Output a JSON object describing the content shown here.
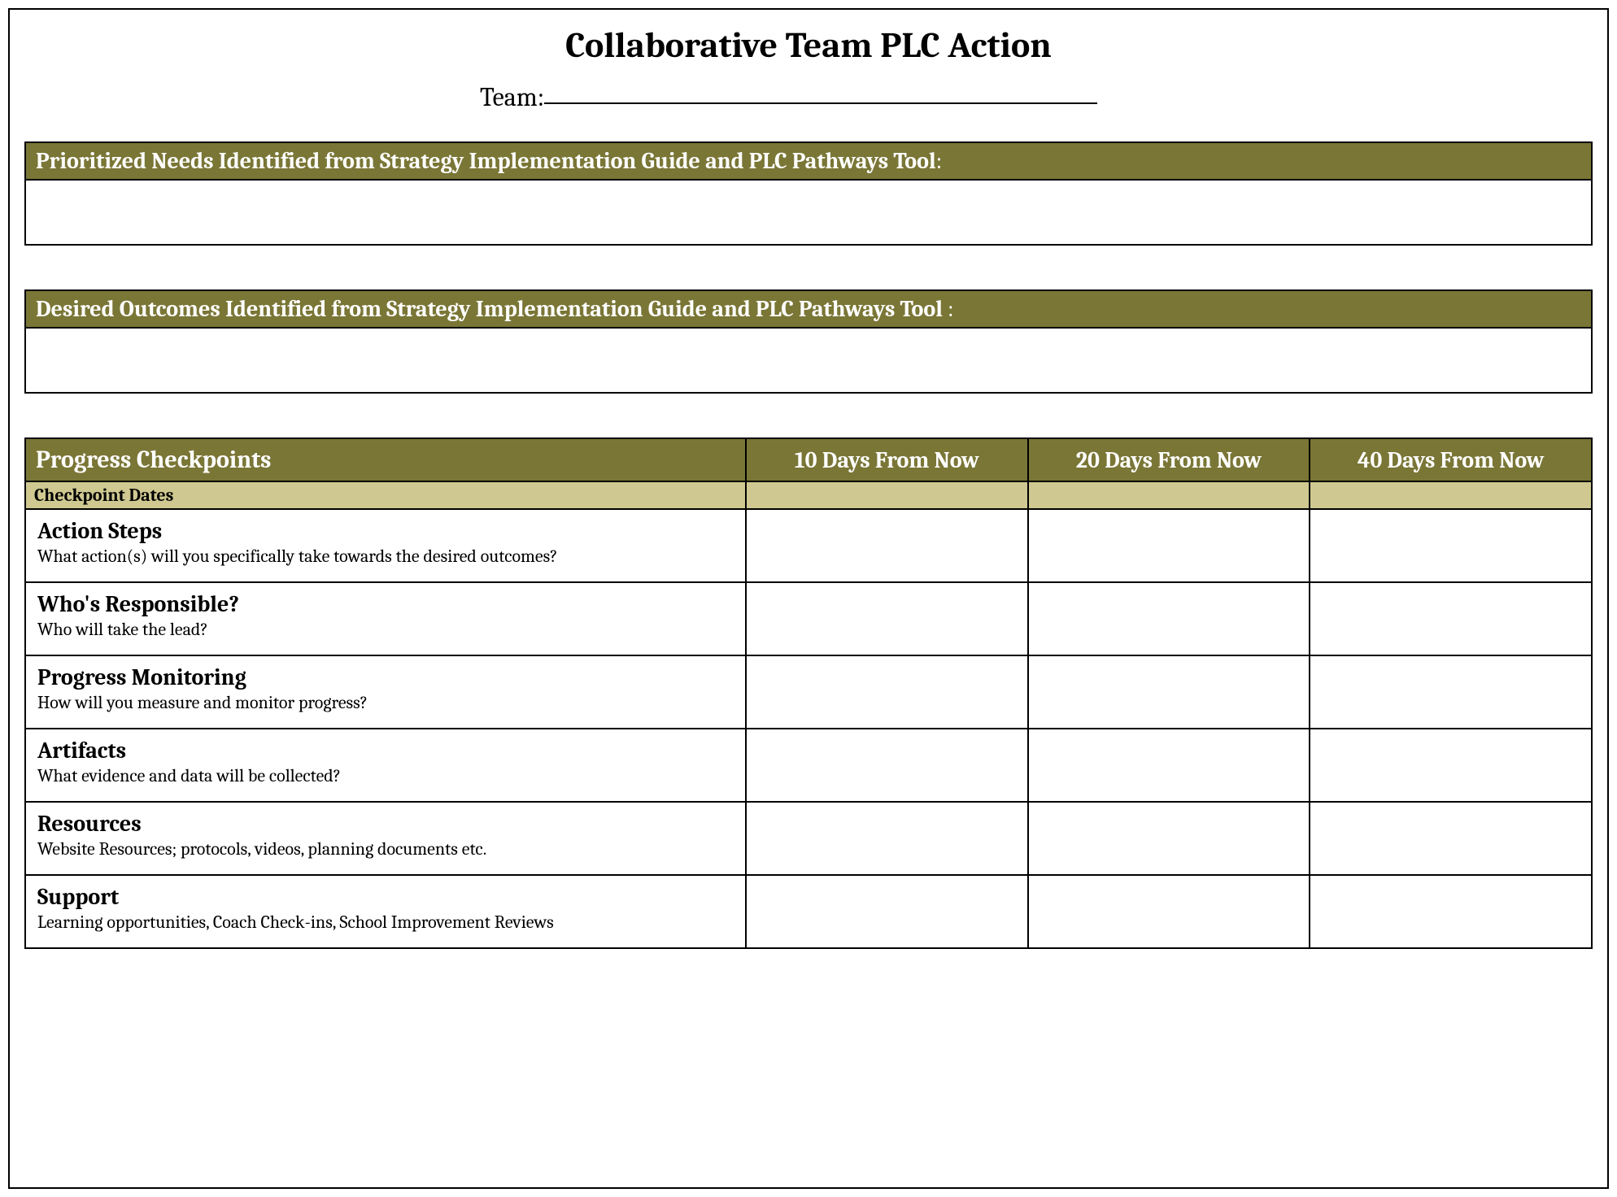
{
  "title": "Collaborative Team PLC Action",
  "team": {
    "label": "Team:",
    "value": ""
  },
  "sections": {
    "prioritized": "Prioritized Needs Identified from Strategy Implementation Guide and PLC Pathways Tool",
    "desired": "Desired Outcomes Identified from Strategy Implementation Guide and PLC Pathways Tool "
  },
  "progress": {
    "header": "Progress Checkpoints",
    "columns": [
      "10 Days From Now",
      "20 Days From Now",
      "40 Days From Now"
    ],
    "checkpoint_label": "Checkpoint Dates",
    "rows": [
      {
        "title": "Action Steps",
        "sub": "What action(s) will you specifically take towards the desired outcomes?"
      },
      {
        "title": "Who's Responsible?",
        "sub": "Who will take the lead?"
      },
      {
        "title": "Progress Monitoring",
        "sub": "How will you measure and monitor progress?"
      },
      {
        "title": "Artifacts",
        "sub": "What evidence and data will be collected?"
      },
      {
        "title": "Resources",
        "sub": "Website Resources; protocols, videos, planning documents etc."
      },
      {
        "title": "Support",
        "sub": "Learning opportunities, Coach Check-ins, School Improvement Reviews"
      }
    ]
  },
  "colors": {
    "header_bg": "#7a7636",
    "header_fg": "#ffffff",
    "checkpoint_bg": "#cfc991",
    "border": "#000000",
    "page_bg": "#ffffff"
  }
}
